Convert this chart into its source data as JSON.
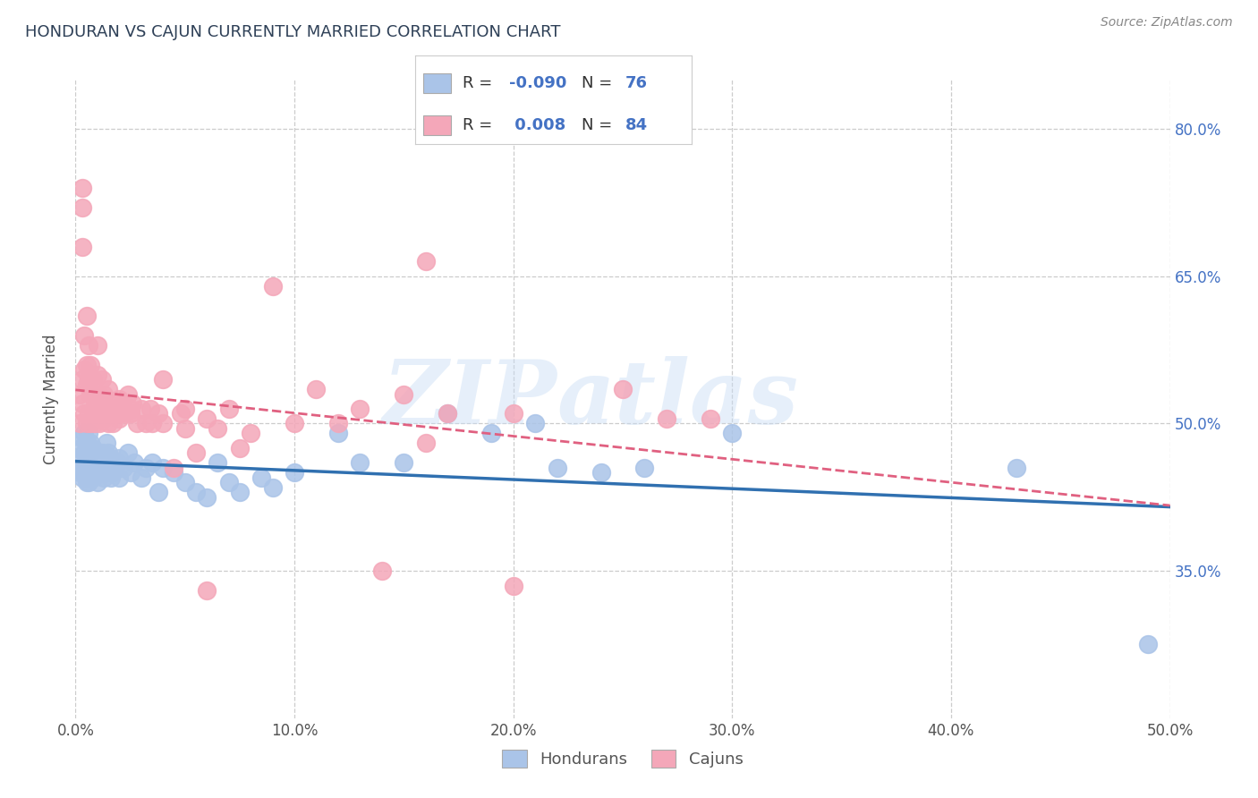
{
  "title": "HONDURAN VS CAJUN CURRENTLY MARRIED CORRELATION CHART",
  "source_text": "Source: ZipAtlas.com",
  "ylabel": "Currently Married",
  "xlim": [
    0.0,
    0.5
  ],
  "ylim": [
    0.2,
    0.85
  ],
  "ytick_labels": [
    "35.0%",
    "50.0%",
    "65.0%",
    "80.0%"
  ],
  "ytick_positions": [
    0.35,
    0.5,
    0.65,
    0.8
  ],
  "xtick_vals": [
    0.0,
    0.1,
    0.2,
    0.3,
    0.4,
    0.5
  ],
  "grid_color": "#cccccc",
  "background_color": "#ffffff",
  "honduran_color": "#aac4e8",
  "cajun_color": "#f4a7b9",
  "honduran_line_color": "#3070b0",
  "cajun_line_color": "#e06080",
  "legend_group": [
    "Hondurans",
    "Cajuns"
  ],
  "watermark_text": "ZIPatlas",
  "honduran_scatter": [
    [
      0.001,
      0.455
    ],
    [
      0.002,
      0.45
    ],
    [
      0.002,
      0.475
    ],
    [
      0.003,
      0.445
    ],
    [
      0.003,
      0.465
    ],
    [
      0.003,
      0.485
    ],
    [
      0.004,
      0.45
    ],
    [
      0.004,
      0.47
    ],
    [
      0.004,
      0.49
    ],
    [
      0.005,
      0.445
    ],
    [
      0.005,
      0.46
    ],
    [
      0.005,
      0.48
    ],
    [
      0.005,
      0.44
    ],
    [
      0.006,
      0.455
    ],
    [
      0.006,
      0.47
    ],
    [
      0.006,
      0.49
    ],
    [
      0.006,
      0.44
    ],
    [
      0.007,
      0.45
    ],
    [
      0.007,
      0.465
    ],
    [
      0.007,
      0.48
    ],
    [
      0.008,
      0.445
    ],
    [
      0.008,
      0.46
    ],
    [
      0.008,
      0.475
    ],
    [
      0.009,
      0.45
    ],
    [
      0.009,
      0.465
    ],
    [
      0.01,
      0.455
    ],
    [
      0.01,
      0.47
    ],
    [
      0.01,
      0.44
    ],
    [
      0.011,
      0.45
    ],
    [
      0.011,
      0.465
    ],
    [
      0.012,
      0.455
    ],
    [
      0.012,
      0.47
    ],
    [
      0.013,
      0.445
    ],
    [
      0.013,
      0.46
    ],
    [
      0.014,
      0.45
    ],
    [
      0.014,
      0.48
    ],
    [
      0.015,
      0.455
    ],
    [
      0.015,
      0.47
    ],
    [
      0.016,
      0.445
    ],
    [
      0.016,
      0.465
    ],
    [
      0.017,
      0.45
    ],
    [
      0.018,
      0.455
    ],
    [
      0.019,
      0.46
    ],
    [
      0.02,
      0.465
    ],
    [
      0.02,
      0.445
    ],
    [
      0.022,
      0.455
    ],
    [
      0.024,
      0.47
    ],
    [
      0.025,
      0.45
    ],
    [
      0.027,
      0.46
    ],
    [
      0.03,
      0.445
    ],
    [
      0.032,
      0.455
    ],
    [
      0.035,
      0.46
    ],
    [
      0.038,
      0.43
    ],
    [
      0.04,
      0.455
    ],
    [
      0.045,
      0.45
    ],
    [
      0.05,
      0.44
    ],
    [
      0.055,
      0.43
    ],
    [
      0.06,
      0.425
    ],
    [
      0.065,
      0.46
    ],
    [
      0.07,
      0.44
    ],
    [
      0.075,
      0.43
    ],
    [
      0.085,
      0.445
    ],
    [
      0.09,
      0.435
    ],
    [
      0.1,
      0.45
    ],
    [
      0.12,
      0.49
    ],
    [
      0.13,
      0.46
    ],
    [
      0.15,
      0.46
    ],
    [
      0.17,
      0.51
    ],
    [
      0.19,
      0.49
    ],
    [
      0.21,
      0.5
    ],
    [
      0.22,
      0.455
    ],
    [
      0.24,
      0.45
    ],
    [
      0.26,
      0.455
    ],
    [
      0.3,
      0.49
    ],
    [
      0.43,
      0.455
    ],
    [
      0.49,
      0.275
    ]
  ],
  "cajun_scatter": [
    [
      0.002,
      0.5
    ],
    [
      0.002,
      0.53
    ],
    [
      0.003,
      0.545
    ],
    [
      0.003,
      0.52
    ],
    [
      0.003,
      0.68
    ],
    [
      0.004,
      0.51
    ],
    [
      0.004,
      0.555
    ],
    [
      0.004,
      0.59
    ],
    [
      0.005,
      0.5
    ],
    [
      0.005,
      0.54
    ],
    [
      0.005,
      0.56
    ],
    [
      0.005,
      0.61
    ],
    [
      0.006,
      0.51
    ],
    [
      0.006,
      0.545
    ],
    [
      0.006,
      0.58
    ],
    [
      0.007,
      0.5
    ],
    [
      0.007,
      0.53
    ],
    [
      0.007,
      0.56
    ],
    [
      0.008,
      0.515
    ],
    [
      0.008,
      0.545
    ],
    [
      0.009,
      0.5
    ],
    [
      0.009,
      0.53
    ],
    [
      0.01,
      0.515
    ],
    [
      0.01,
      0.55
    ],
    [
      0.01,
      0.58
    ],
    [
      0.011,
      0.5
    ],
    [
      0.011,
      0.53
    ],
    [
      0.012,
      0.515
    ],
    [
      0.012,
      0.545
    ],
    [
      0.013,
      0.505
    ],
    [
      0.013,
      0.53
    ],
    [
      0.014,
      0.515
    ],
    [
      0.015,
      0.5
    ],
    [
      0.015,
      0.535
    ],
    [
      0.016,
      0.515
    ],
    [
      0.017,
      0.5
    ],
    [
      0.018,
      0.52
    ],
    [
      0.019,
      0.51
    ],
    [
      0.02,
      0.505
    ],
    [
      0.021,
      0.52
    ],
    [
      0.022,
      0.51
    ],
    [
      0.024,
      0.53
    ],
    [
      0.025,
      0.51
    ],
    [
      0.026,
      0.52
    ],
    [
      0.028,
      0.5
    ],
    [
      0.03,
      0.515
    ],
    [
      0.032,
      0.5
    ],
    [
      0.034,
      0.515
    ],
    [
      0.035,
      0.5
    ],
    [
      0.038,
      0.51
    ],
    [
      0.04,
      0.5
    ],
    [
      0.045,
      0.455
    ],
    [
      0.048,
      0.51
    ],
    [
      0.05,
      0.495
    ],
    [
      0.055,
      0.47
    ],
    [
      0.06,
      0.505
    ],
    [
      0.065,
      0.495
    ],
    [
      0.07,
      0.515
    ],
    [
      0.075,
      0.475
    ],
    [
      0.08,
      0.49
    ],
    [
      0.09,
      0.64
    ],
    [
      0.1,
      0.5
    ],
    [
      0.11,
      0.535
    ],
    [
      0.12,
      0.5
    ],
    [
      0.13,
      0.515
    ],
    [
      0.15,
      0.53
    ],
    [
      0.16,
      0.48
    ],
    [
      0.17,
      0.51
    ],
    [
      0.003,
      0.72
    ],
    [
      0.003,
      0.74
    ],
    [
      0.02,
      0.525
    ],
    [
      0.025,
      0.515
    ],
    [
      0.16,
      0.665
    ],
    [
      0.2,
      0.51
    ],
    [
      0.25,
      0.535
    ],
    [
      0.27,
      0.505
    ],
    [
      0.29,
      0.505
    ],
    [
      0.04,
      0.545
    ],
    [
      0.05,
      0.515
    ],
    [
      0.06,
      0.33
    ],
    [
      0.14,
      0.35
    ],
    [
      0.2,
      0.335
    ]
  ]
}
